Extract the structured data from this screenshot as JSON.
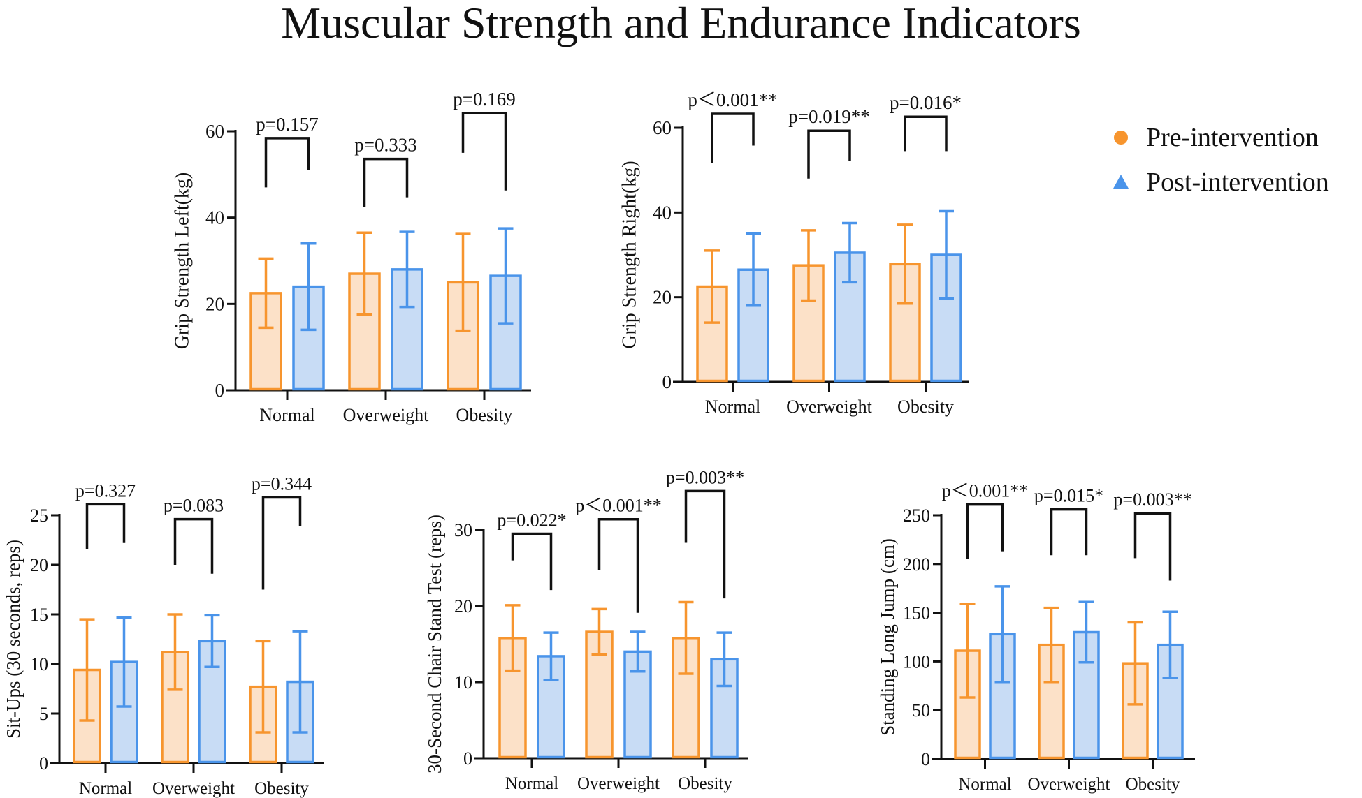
{
  "title": "Muscular Strength and Endurance Indicators",
  "legend": {
    "pre": "Pre-intervention",
    "post": "Post-intervention"
  },
  "colors": {
    "pre_stroke": "#F7952E",
    "pre_fill": "#FCE1C8",
    "post_stroke": "#4A94EA",
    "post_fill": "#C8DCF5",
    "axis": "#111111"
  },
  "chart_data": [
    {
      "type": "bar",
      "ylabel": "Grip Strength Left(kg)",
      "ylim": [
        0,
        60
      ],
      "yticks": [
        "0",
        "20",
        "40",
        "60"
      ],
      "categories": [
        "Normal",
        "Overweight",
        "Obesity"
      ],
      "series": [
        {
          "name": "Pre-intervention",
          "values": [
            22.5,
            27.0,
            25.0
          ],
          "sd": [
            8.0,
            9.5,
            11.2
          ]
        },
        {
          "name": "Post-intervention",
          "values": [
            24.0,
            28.0,
            26.5
          ],
          "sd": [
            10.0,
            8.7,
            11.0
          ]
        }
      ],
      "comparisons": [
        {
          "label": "p=0.157",
          "bracket_y": 58.4,
          "left_end": 47,
          "right_end": 51
        },
        {
          "label": "p=0.333",
          "bracket_y": 53.6,
          "left_end": 42.4,
          "right_end": 44.7
        },
        {
          "label": "p=0.169",
          "bracket_y": 64.2,
          "left_end": 55,
          "right_end": 46.3
        }
      ]
    },
    {
      "type": "bar",
      "ylabel": "Grip Strength Right(kg)",
      "ylim": [
        0,
        60
      ],
      "yticks": [
        "0",
        "20",
        "40",
        "60"
      ],
      "categories": [
        "Normal",
        "Overweight",
        "Obesity"
      ],
      "series": [
        {
          "name": "Pre-intervention",
          "values": [
            22.5,
            27.5,
            27.8
          ],
          "sd": [
            8.5,
            8.3,
            9.3
          ]
        },
        {
          "name": "Post-intervention",
          "values": [
            26.5,
            30.5,
            30.0
          ],
          "sd": [
            8.5,
            7.0,
            10.3
          ]
        }
      ],
      "comparisons": [
        {
          "label": "p＜0.001**",
          "bracket_y": 63.3,
          "left_end": 51.7,
          "right_end": 55.8
        },
        {
          "label": "p=0.019**",
          "bracket_y": 59.3,
          "left_end": 48,
          "right_end": 52.2
        },
        {
          "label": "p=0.016*",
          "bracket_y": 62.6,
          "left_end": 54.5,
          "right_end": 54.5
        }
      ]
    },
    {
      "type": "bar",
      "ylabel": "Sit-Ups (30 seconds, reps)",
      "ylim": [
        0,
        25
      ],
      "yticks": [
        "0",
        "5",
        "10",
        "15",
        "20",
        "25"
      ],
      "categories": [
        "Normal",
        "Overweight",
        "Obesity"
      ],
      "series": [
        {
          "name": "Pre-intervention",
          "values": [
            9.4,
            11.2,
            7.7
          ],
          "sd": [
            5.1,
            3.8,
            4.6
          ]
        },
        {
          "name": "Post-intervention",
          "values": [
            10.2,
            12.3,
            8.2
          ],
          "sd": [
            4.5,
            2.6,
            5.1
          ]
        }
      ],
      "comparisons": [
        {
          "label": "p=0.327",
          "bracket_y": 26.1,
          "left_end": 21.6,
          "right_end": 22.2
        },
        {
          "label": "p=0.083",
          "bracket_y": 24.6,
          "left_end": 20.0,
          "right_end": 19.1
        },
        {
          "label": "p=0.344",
          "bracket_y": 26.8,
          "left_end": 17.5,
          "right_end": 23.9
        }
      ]
    },
    {
      "type": "bar",
      "ylabel": "30-Second Chair Stand Test (reps)",
      "ylim": [
        0,
        30
      ],
      "yticks": [
        "0",
        "10",
        "20",
        "30"
      ],
      "categories": [
        "Normal",
        "Overweight",
        "Obesity"
      ],
      "series": [
        {
          "name": "Pre-intervention",
          "values": [
            15.8,
            16.6,
            15.8
          ],
          "sd": [
            4.3,
            3.0,
            4.7
          ]
        },
        {
          "name": "Post-intervention",
          "values": [
            13.4,
            14.0,
            13.0
          ],
          "sd": [
            3.1,
            2.6,
            3.5
          ]
        }
      ],
      "comparisons": [
        {
          "label": "p=0.022*",
          "bracket_y": 29.5,
          "left_end": 26.0,
          "right_end": 22.1
        },
        {
          "label": "p＜0.001**",
          "bracket_y": 31.4,
          "left_end": 24.7,
          "right_end": 19.1
        },
        {
          "label": "p=0.003**",
          "bracket_y": 35.1,
          "left_end": 28.3,
          "right_end": 21.0
        }
      ]
    },
    {
      "type": "bar",
      "ylabel": "Standing Long Jump (cm)",
      "ylim": [
        0,
        250
      ],
      "yticks": [
        "0",
        "50",
        "100",
        "150",
        "200",
        "250"
      ],
      "categories": [
        "Normal",
        "Overweight",
        "Obesity"
      ],
      "series": [
        {
          "name": "Pre-intervention",
          "values": [
            111,
            117,
            98
          ],
          "sd": [
            48,
            38,
            42
          ]
        },
        {
          "name": "Post-intervention",
          "values": [
            128,
            130,
            117
          ],
          "sd": [
            49,
            31,
            34
          ]
        }
      ],
      "comparisons": [
        {
          "label": "p＜0.001**",
          "bracket_y": 261,
          "left_end": 205,
          "right_end": 213
        },
        {
          "label": "p=0.015*",
          "bracket_y": 256,
          "left_end": 209,
          "right_end": 209
        },
        {
          "label": "p=0.003**",
          "bracket_y": 252,
          "left_end": 206,
          "right_end": 183
        }
      ]
    }
  ]
}
